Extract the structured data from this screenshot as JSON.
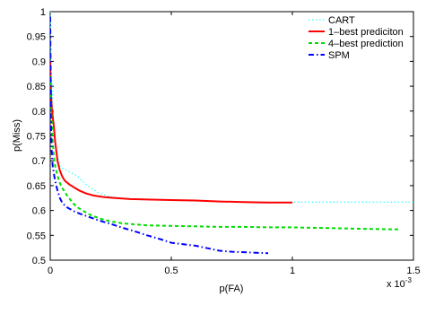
{
  "chart_data": {
    "type": "line",
    "title": "",
    "xlabel": "p(FA)",
    "ylabel": "p(Miss)",
    "x_exponent_label": "x 10",
    "x_exponent_power": "-3",
    "xlim": [
      0,
      1.5
    ],
    "ylim": [
      0.5,
      1.0
    ],
    "xticks": [
      0,
      0.5,
      1,
      1.5
    ],
    "yticks": [
      0.5,
      0.55,
      0.6,
      0.65,
      0.7,
      0.75,
      0.8,
      0.85,
      0.9,
      0.95,
      1
    ],
    "xtick_labels": [
      "0",
      "0.5",
      "1",
      "1.5"
    ],
    "ytick_labels": [
      "0.5",
      "0.55",
      "0.6",
      "0.65",
      "0.7",
      "0.75",
      "0.8",
      "0.85",
      "0.9",
      "0.95",
      "1"
    ],
    "grid": false,
    "legend_position": "top-right",
    "series": [
      {
        "name": "CART",
        "color": "#00ffff",
        "style": "dotted",
        "width": 1,
        "x": [
          0,
          0.002,
          0.005,
          0.01,
          0.015,
          0.02,
          0.03,
          0.04,
          0.05,
          0.07,
          0.09,
          0.11,
          0.13,
          0.16,
          0.2,
          0.25,
          0.3,
          0.4,
          0.5,
          0.6,
          0.7,
          0.8,
          0.9,
          1.0,
          1.1,
          1.2,
          1.3,
          1.4,
          1.5
        ],
        "y": [
          1.0,
          0.95,
          0.88,
          0.82,
          0.77,
          0.74,
          0.71,
          0.69,
          0.685,
          0.68,
          0.675,
          0.67,
          0.66,
          0.648,
          0.635,
          0.628,
          0.625,
          0.622,
          0.62,
          0.619,
          0.618,
          0.617,
          0.617,
          0.617,
          0.617,
          0.617,
          0.617,
          0.617,
          0.617
        ]
      },
      {
        "name": "1–best prediciton",
        "color": "#ff0000",
        "style": "solid",
        "width": 2,
        "x": [
          0,
          0.001,
          0.003,
          0.006,
          0.01,
          0.015,
          0.02,
          0.03,
          0.04,
          0.05,
          0.06,
          0.08,
          0.1,
          0.12,
          0.15,
          0.18,
          0.22,
          0.27,
          0.33,
          0.4,
          0.5,
          0.6,
          0.7,
          0.8,
          0.9,
          1.0
        ],
        "y": [
          0.9,
          0.87,
          0.84,
          0.81,
          0.79,
          0.77,
          0.74,
          0.7,
          0.68,
          0.668,
          0.66,
          0.652,
          0.646,
          0.64,
          0.634,
          0.63,
          0.627,
          0.625,
          0.623,
          0.622,
          0.621,
          0.62,
          0.618,
          0.617,
          0.616,
          0.616
        ]
      },
      {
        "name": "4–best prediction",
        "color": "#00dd00",
        "style": "dashed",
        "width": 2,
        "x": [
          0,
          0.003,
          0.006,
          0.01,
          0.015,
          0.02,
          0.03,
          0.04,
          0.05,
          0.07,
          0.09,
          0.11,
          0.14,
          0.17,
          0.21,
          0.25,
          0.3,
          0.35,
          0.4,
          0.5,
          0.6,
          0.7,
          0.8,
          0.9,
          1.0,
          1.1,
          1.2,
          1.3,
          1.44
        ],
        "y": [
          0.87,
          0.82,
          0.78,
          0.74,
          0.71,
          0.69,
          0.67,
          0.655,
          0.645,
          0.63,
          0.617,
          0.607,
          0.598,
          0.59,
          0.583,
          0.578,
          0.574,
          0.572,
          0.57,
          0.569,
          0.568,
          0.567,
          0.567,
          0.566,
          0.566,
          0.565,
          0.564,
          0.563,
          0.562
        ]
      },
      {
        "name": "SPM",
        "color": "#0000ff",
        "style": "dashdot",
        "width": 2,
        "x": [
          0,
          0.003,
          0.006,
          0.01,
          0.015,
          0.02,
          0.03,
          0.04,
          0.05,
          0.07,
          0.1,
          0.13,
          0.16,
          0.2,
          0.25,
          0.3,
          0.35,
          0.4,
          0.45,
          0.5,
          0.55,
          0.6,
          0.65,
          0.7,
          0.75,
          0.8,
          0.85,
          0.9
        ],
        "y": [
          0.99,
          0.78,
          0.72,
          0.69,
          0.675,
          0.66,
          0.64,
          0.625,
          0.615,
          0.606,
          0.598,
          0.592,
          0.587,
          0.58,
          0.573,
          0.565,
          0.558,
          0.55,
          0.543,
          0.535,
          0.532,
          0.529,
          0.524,
          0.519,
          0.517,
          0.516,
          0.515,
          0.514
        ]
      }
    ]
  }
}
